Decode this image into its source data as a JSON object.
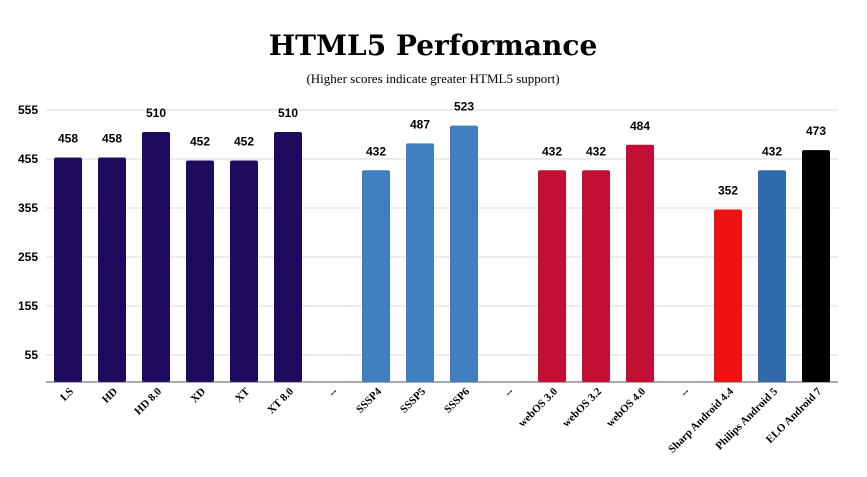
{
  "chart_data": {
    "type": "bar",
    "title": "HTML5 Performance",
    "subtitle": "(Higher scores indicate greater HTML5 support)",
    "xlabel": "",
    "ylabel": "",
    "ylim": [
      0,
      555
    ],
    "yticks": [
      55,
      155,
      255,
      355,
      455,
      555
    ],
    "grid": true,
    "legend": "none",
    "categories": [
      "LS",
      "HD",
      "HD 8.0",
      "XD",
      "XT",
      "XT 8.0",
      "--",
      "SSSP4",
      "SSSP5",
      "SSSP6",
      "--",
      "webOS 3.0",
      "webOS 3.2",
      "webOS 4.0",
      "--",
      "Sharp Android 4.4",
      "Philips Android 5",
      "ELO Android 7"
    ],
    "values": [
      458,
      458,
      510,
      452,
      452,
      510,
      null,
      432,
      487,
      523,
      null,
      432,
      432,
      484,
      null,
      352,
      432,
      473
    ],
    "value_labels": [
      "458",
      "458",
      "510",
      "452",
      "452",
      "510",
      "",
      "432",
      "487",
      "523",
      "",
      "432",
      "432",
      "484",
      "",
      "352",
      "432",
      "473"
    ],
    "colors": [
      "#1e0b5e",
      "#1e0b5e",
      "#1e0b5e",
      "#1e0b5e",
      "#1e0b5e",
      "#1e0b5e",
      "",
      "#3f7fbf",
      "#3f7fbf",
      "#3f7fbf",
      "",
      "#c40f34",
      "#c40f34",
      "#c40f34",
      "",
      "#ee1111",
      "#2f6aab",
      "#000000"
    ]
  }
}
